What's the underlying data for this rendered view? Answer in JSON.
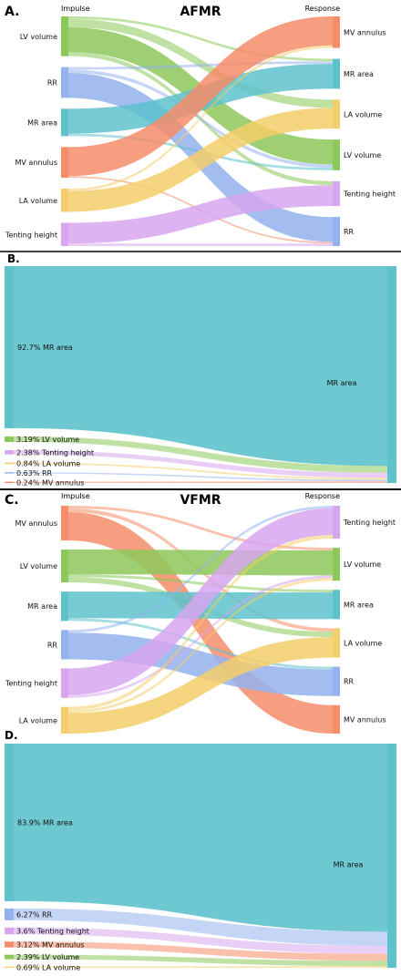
{
  "colors": {
    "LV volume": "#8dc85a",
    "RR": "#94b2ef",
    "MR area": "#5ec2cc",
    "MV annulus": "#f58d68",
    "LA volume": "#f4ce6a",
    "Tenting height": "#d7a6ef"
  },
  "panels": [
    {
      "letter": "A.",
      "title": "AFMR",
      "left_header": "Impulse",
      "right_header": "Response",
      "impulse": [
        "LV volume",
        "RR",
        "MR area",
        "MV annulus",
        "LA volume",
        "Tenting height"
      ],
      "response": [
        "MV annulus",
        "MR area",
        "LA volume",
        "LV volume",
        "Tenting height",
        "RR"
      ],
      "links": [
        {
          "source": "LV volume",
          "target": "LV volume",
          "value": 3
        },
        {
          "source": "LV volume",
          "target": "LA volume",
          "value": 1
        },
        {
          "source": "LV volume",
          "target": "Tenting height",
          "value": 0.5
        },
        {
          "source": "LV volume",
          "target": "MR area",
          "value": 0.3
        },
        {
          "source": "RR",
          "target": "RR",
          "value": 3
        },
        {
          "source": "RR",
          "target": "LV volume",
          "value": 0.4
        },
        {
          "source": "RR",
          "target": "MR area",
          "value": 0.3
        },
        {
          "source": "MR area",
          "target": "MR area",
          "value": 3
        },
        {
          "source": "MR area",
          "target": "LV volume",
          "value": 0.3
        },
        {
          "source": "MV annulus",
          "target": "MV annulus",
          "value": 3.5
        },
        {
          "source": "MV annulus",
          "target": "RR",
          "value": 0.2
        },
        {
          "source": "LA volume",
          "target": "LA volume",
          "value": 2.5
        },
        {
          "source": "LA volume",
          "target": "MV annulus",
          "value": 0.3
        },
        {
          "source": "Tenting height",
          "target": "Tenting height",
          "value": 2.5
        },
        {
          "source": "Tenting height",
          "target": "RR",
          "value": 0.3
        }
      ]
    },
    {
      "letter": "C.",
      "title": "VFMR",
      "left_header": "Impulse",
      "right_header": "Response",
      "impulse": [
        "MV annulus",
        "LV volume",
        "MR area",
        "RR",
        "Tenting height",
        "LA volume"
      ],
      "response": [
        "Tenting height",
        "LV volume",
        "MR area",
        "LA volume",
        "RR",
        "MV annulus"
      ],
      "links": [
        {
          "source": "MV annulus",
          "target": "MV annulus",
          "value": 3.2
        },
        {
          "source": "MV annulus",
          "target": "LA volume",
          "value": 0.4
        },
        {
          "source": "MV annulus",
          "target": "LV volume",
          "value": 0.3
        },
        {
          "source": "LV volume",
          "target": "LV volume",
          "value": 2.8
        },
        {
          "source": "LV volume",
          "target": "LA volume",
          "value": 0.6
        },
        {
          "source": "LV volume",
          "target": "MR area",
          "value": 0.3
        },
        {
          "source": "MR area",
          "target": "MR area",
          "value": 3
        },
        {
          "source": "MR area",
          "target": "RR",
          "value": 0.3
        },
        {
          "source": "RR",
          "target": "RR",
          "value": 3
        },
        {
          "source": "RR",
          "target": "Tenting height",
          "value": 0.3
        },
        {
          "source": "Tenting height",
          "target": "Tenting height",
          "value": 3
        },
        {
          "source": "Tenting height",
          "target": "LV volume",
          "value": 0.3
        },
        {
          "source": "LA volume",
          "target": "LA volume",
          "value": 2.3
        },
        {
          "source": "LA volume",
          "target": "Tenting height",
          "value": 0.4
        },
        {
          "source": "LA volume",
          "target": "LV volume",
          "value": 0.3
        }
      ]
    }
  ],
  "bars": [
    {
      "letter": "B.",
      "target": "MR area",
      "items": [
        {
          "name": "MR area",
          "pct": 92.7,
          "label": "92.7% MR area"
        },
        {
          "name": "LV volume",
          "pct": 3.19,
          "label": "3.19% LV volume"
        },
        {
          "name": "Tenting height",
          "pct": 2.38,
          "label": "2.38% Tenting height"
        },
        {
          "name": "LA volume",
          "pct": 0.84,
          "label": "0.84% LA volume"
        },
        {
          "name": "RR",
          "pct": 0.63,
          "label": "0.63% RR"
        },
        {
          "name": "MV annulus",
          "pct": 0.24,
          "label": "0.24% MV annulus"
        }
      ]
    },
    {
      "letter": "D.",
      "target": "MR area",
      "items": [
        {
          "name": "MR area",
          "pct": 83.9,
          "label": "83.9% MR area"
        },
        {
          "name": "RR",
          "pct": 6.27,
          "label": "6.27% RR"
        },
        {
          "name": "Tenting height",
          "pct": 3.6,
          "label": "3.6% Tenting height"
        },
        {
          "name": "MV annulus",
          "pct": 3.12,
          "label": "3.12% MV annulus"
        },
        {
          "name": "LV volume",
          "pct": 2.39,
          "label": "2.39% LV volume"
        },
        {
          "name": "LA volume",
          "pct": 0.69,
          "label": "0.69% LA volume"
        }
      ]
    }
  ]
}
